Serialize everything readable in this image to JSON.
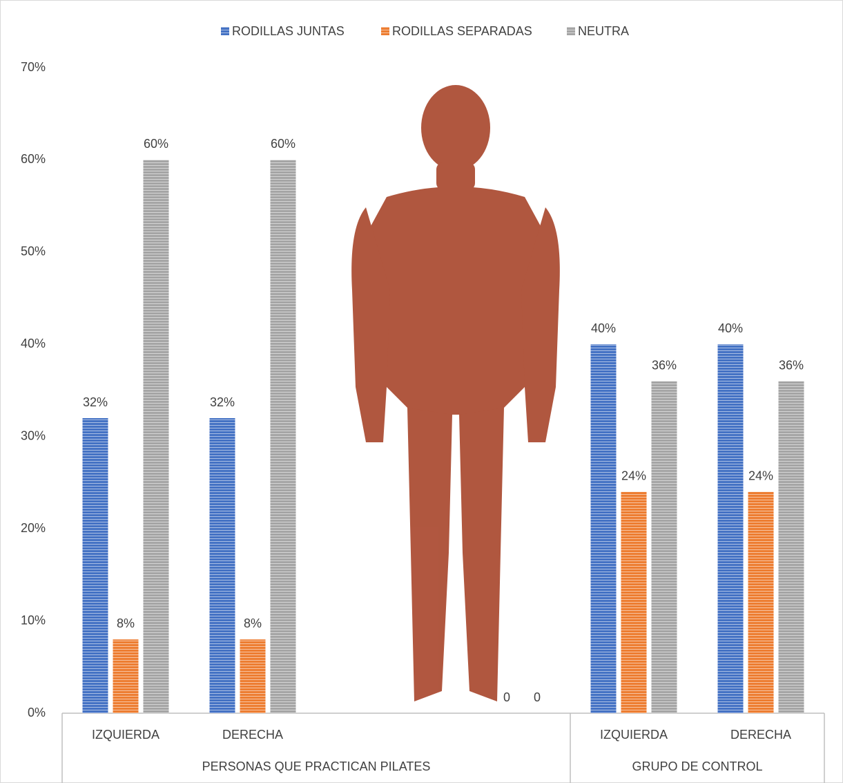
{
  "chart_data": {
    "type": "bar",
    "categories": [
      "IZQUIERDA",
      "DERECHA",
      null,
      null,
      "IZQUIERDA",
      "DERECHA"
    ],
    "groups": [
      {
        "name": "PERSONAS QUE PRACTICAN PILATES",
        "span": 4
      },
      {
        "name": "GRUPO DE CONTROL",
        "span": 2
      }
    ],
    "series": [
      {
        "name": "RODILLAS JUNTAS",
        "color": "#4472c4",
        "values": [
          32,
          32,
          null,
          null,
          40,
          40
        ],
        "value_labels": [
          "32%",
          "32%",
          null,
          null,
          "40%",
          "40%"
        ]
      },
      {
        "name": "RODILLAS SEPARADAS",
        "color": "#ed7d31",
        "values": [
          8,
          8,
          null,
          0,
          24,
          24
        ],
        "value_labels": [
          "8%",
          "8%",
          null,
          "0",
          "24%",
          "24%"
        ]
      },
      {
        "name": "NEUTRA",
        "color": "#a5a5a5",
        "values": [
          60,
          60,
          null,
          0,
          36,
          36
        ],
        "value_labels": [
          "60%",
          "60%",
          null,
          "0",
          "36%",
          "36%"
        ]
      }
    ],
    "ylim": [
      0,
      70
    ],
    "yticks": [
      {
        "value": 0,
        "label": "0%"
      },
      {
        "value": 10,
        "label": "10%"
      },
      {
        "value": 20,
        "label": "20%"
      },
      {
        "value": 30,
        "label": "30%"
      },
      {
        "value": 40,
        "label": "40%"
      },
      {
        "value": 50,
        "label": "50%"
      },
      {
        "value": 60,
        "label": "60%"
      },
      {
        "value": 70,
        "label": "70%"
      }
    ],
    "legend": "top",
    "grid": false
  }
}
